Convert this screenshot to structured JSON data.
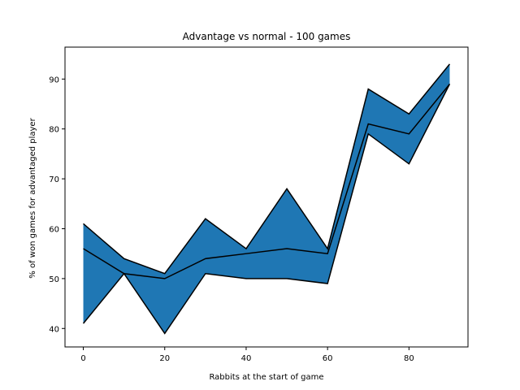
{
  "chart_data": {
    "type": "area",
    "title": "Advantage vs normal  - 100 games",
    "xlabel": "Rabbits at the start of game",
    "ylabel": "% of won games for advantaged player",
    "xlim": [
      -4.5,
      94.5
    ],
    "ylim": [
      36.3,
      96.4
    ],
    "xticks": [
      0,
      20,
      40,
      60,
      80
    ],
    "yticks": [
      40,
      50,
      60,
      70,
      80,
      90
    ],
    "grid": false,
    "fill_color": "#1f77b4",
    "line_color": "#000000",
    "x": [
      0,
      10,
      20,
      30,
      40,
      50,
      60,
      70,
      80,
      90
    ],
    "series": [
      {
        "role": "upper",
        "values": [
          61,
          54,
          51,
          62,
          56,
          68,
          56,
          88,
          83,
          93
        ]
      },
      {
        "role": "middle",
        "values": [
          56,
          51,
          50,
          54,
          55,
          56,
          55,
          81,
          79,
          89
        ]
      },
      {
        "role": "lower",
        "values": [
          41,
          51,
          39,
          51,
          50,
          50,
          49,
          79,
          73,
          89
        ]
      }
    ]
  }
}
